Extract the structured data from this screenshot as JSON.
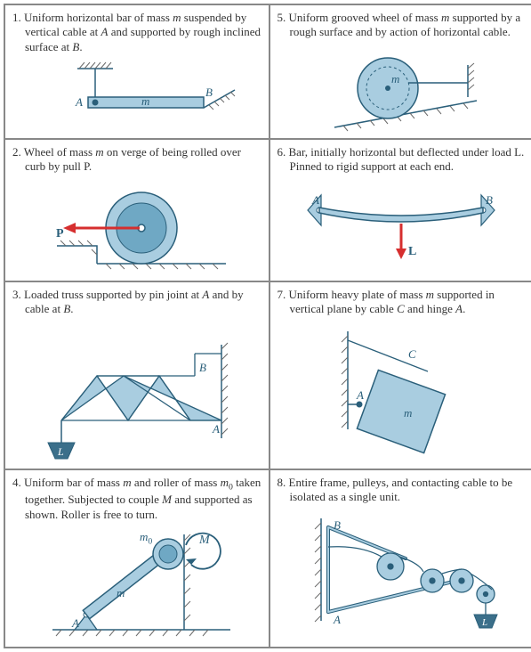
{
  "colors": {
    "border": "#888888",
    "text": "#333333",
    "fill_main": "#a9cde0",
    "fill_dark": "#6fa8c4",
    "stroke_main": "#2a5f7a",
    "hatch": "#6a6a6a",
    "arrow_red": "#d62f2f",
    "annot_blue": "#2a5f7a",
    "load_fill": "#3b6f8a"
  },
  "cells": [
    {
      "num": "1.",
      "text_html": "Uniform horizontal bar of mass <span class='it'>m</span> suspended by vertical cable at <span class='it'>A</span> and supported by rough inclined surface at <span class='it'>B</span>.",
      "labels": {
        "A": "A",
        "B": "B",
        "m": "m"
      }
    },
    {
      "num": "5.",
      "text_html": "Uniform grooved wheel of mass <span class='it'>m</span> supported by a rough surface and by action of horizontal cable.",
      "labels": {
        "m": "m"
      }
    },
    {
      "num": "2.",
      "text_html": "Wheel of mass <span class='it'>m</span> on verge of being rolled over curb by pull P.",
      "labels": {
        "P": "P"
      }
    },
    {
      "num": "6.",
      "text_html": "Bar, initially horizontal but deflected under load L. Pinned to rigid support at each end.",
      "labels": {
        "A": "A",
        "B": "B",
        "L": "L"
      }
    },
    {
      "num": "3.",
      "text_html": "Loaded truss supported by pin joint at <span class='it'>A</span> and by cable at <span class='it'>B</span>.",
      "labels": {
        "A": "A",
        "B": "B",
        "L": "L"
      }
    },
    {
      "num": "7.",
      "text_html": "Uniform heavy plate of mass <span class='it'>m</span> supported in vertical plane by cable <span class='it'>C</span> and hinge <span class='it'>A</span>.",
      "labels": {
        "A": "A",
        "C": "C",
        "m": "m"
      }
    },
    {
      "num": "4.",
      "text_html": "Uniform bar of mass <span class='it'>m</span> and roller of mass <span class='it'>m</span><span class='sub'>0</span> taken together. Subjected to couple <span class='it'>M</span> and supported as shown. Roller is free to turn.",
      "labels": {
        "A": "A",
        "M": "M",
        "m": "m",
        "m0_html": "<span class='it'>m</span><span class='sub'>0</span>"
      }
    },
    {
      "num": "8.",
      "text_html": "Entire frame, pulleys, and contacting cable to be isolated as a single unit.",
      "labels": {
        "A": "A",
        "B": "B",
        "L": "L"
      }
    }
  ]
}
